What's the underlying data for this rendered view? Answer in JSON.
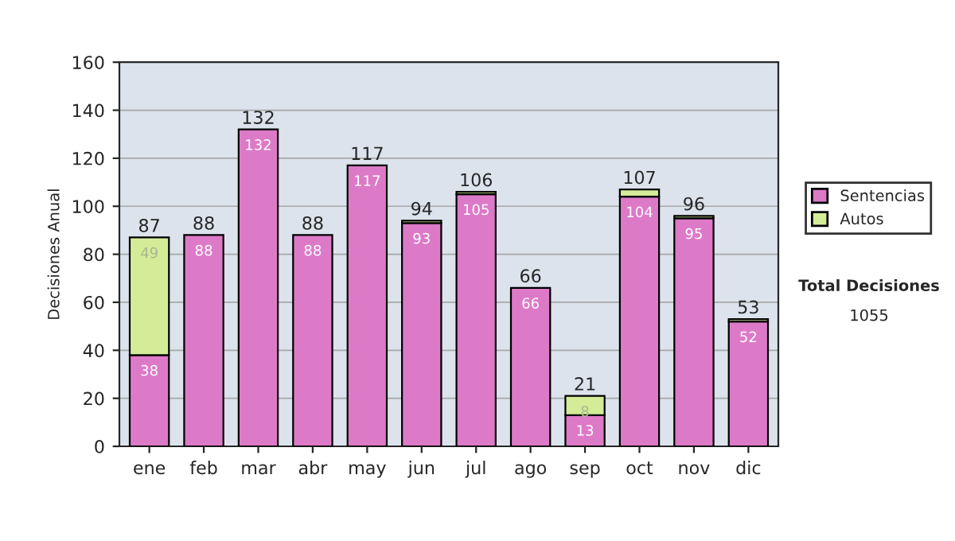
{
  "chart_data": {
    "type": "bar",
    "stacked": true,
    "ylabel": "Decisiones Anual",
    "categories": [
      "ene",
      "feb",
      "mar",
      "abr",
      "may",
      "jun",
      "jul",
      "ago",
      "sep",
      "oct",
      "nov",
      "dic"
    ],
    "series": [
      {
        "name": "Sentencias",
        "color": "#dd7ac8",
        "values": [
          38,
          88,
          132,
          88,
          117,
          93,
          105,
          66,
          13,
          104,
          95,
          52
        ],
        "value_labels": [
          "38",
          "88",
          "132",
          "88",
          "117",
          "93",
          "105",
          "66",
          "13",
          "104",
          "95",
          "52"
        ]
      },
      {
        "name": "Autos",
        "color": "#d4ec98",
        "values": [
          49,
          null,
          null,
          null,
          null,
          1,
          1,
          null,
          8,
          3,
          1,
          1
        ],
        "value_labels": [
          "49",
          null,
          null,
          null,
          null,
          null,
          null,
          null,
          "8",
          null,
          null,
          null
        ]
      }
    ],
    "totals": [
      "87",
      "88",
      "132",
      "88",
      "117",
      "94",
      "106",
      "66",
      "21",
      "107",
      "96",
      "53"
    ],
    "ylim": [
      0,
      160
    ],
    "yticks": [
      0,
      20,
      40,
      60,
      80,
      100,
      120,
      140,
      160
    ],
    "grid": "y",
    "legend": "right",
    "annotations": [
      "Total Decisiones",
      "1055"
    ]
  }
}
